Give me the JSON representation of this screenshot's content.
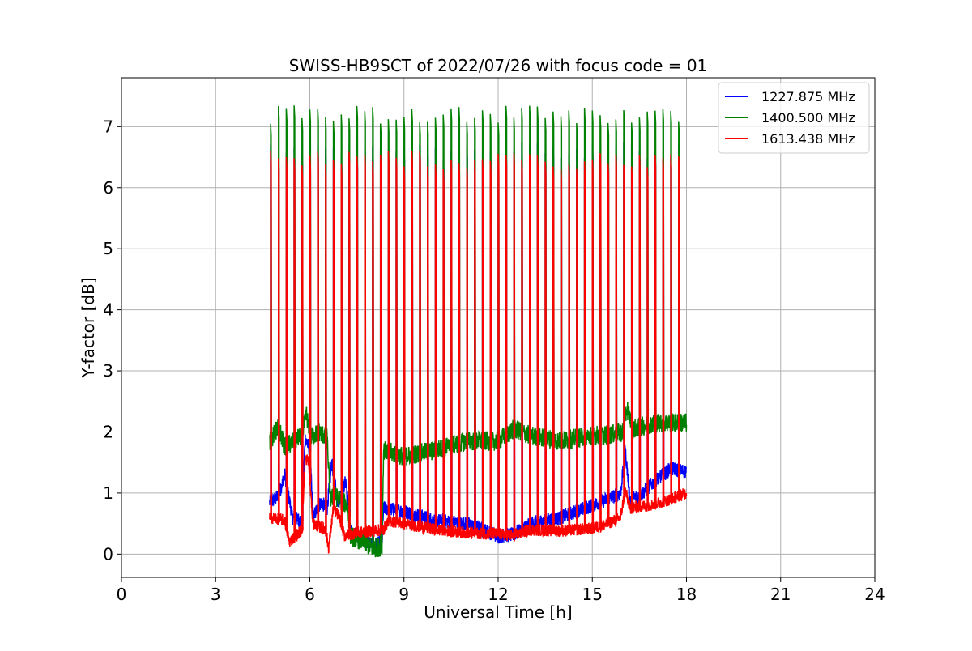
{
  "chart_data": {
    "type": "line",
    "title": "SWISS-HB9SCT of 2022/07/26 with focus code = 01",
    "xlabel": "Universal Time [h]",
    "ylabel": "Y-factor [dB]",
    "xlim": [
      0,
      24
    ],
    "ylim": [
      -0.38,
      7.8
    ],
    "xticks": [
      0,
      3,
      6,
      9,
      12,
      15,
      18,
      21,
      24
    ],
    "yticks": [
      0,
      1,
      2,
      3,
      4,
      5,
      6,
      7
    ],
    "grid": true,
    "legend_position": "top-right",
    "series": [
      {
        "name": "1227.875 MHz",
        "color": "#0000ff",
        "baseline": [
          [
            4.75,
            0.85
          ],
          [
            5.0,
            0.95
          ],
          [
            5.2,
            1.3
          ],
          [
            5.45,
            0.6
          ],
          [
            5.75,
            0.55
          ],
          [
            5.85,
            1.9
          ],
          [
            6.0,
            1.7
          ],
          [
            6.1,
            0.6
          ],
          [
            6.35,
            0.85
          ],
          [
            6.55,
            0.75
          ],
          [
            6.7,
            1.5
          ],
          [
            6.9,
            0.85
          ],
          [
            7.15,
            1.2
          ],
          [
            7.3,
            0.35
          ],
          [
            7.7,
            0.25
          ],
          [
            8.0,
            0.15
          ],
          [
            8.3,
            0.18
          ],
          [
            8.35,
            0.75
          ],
          [
            9.0,
            0.7
          ],
          [
            10.0,
            0.55
          ],
          [
            11.0,
            0.5
          ],
          [
            12.0,
            0.3
          ],
          [
            12.5,
            0.32
          ],
          [
            13.0,
            0.5
          ],
          [
            14.0,
            0.6
          ],
          [
            15.0,
            0.8
          ],
          [
            15.5,
            0.9
          ],
          [
            15.9,
            1.0
          ],
          [
            16.05,
            1.7
          ],
          [
            16.2,
            0.9
          ],
          [
            16.5,
            0.95
          ],
          [
            17.0,
            1.2
          ],
          [
            17.5,
            1.4
          ],
          [
            18.0,
            1.35
          ]
        ],
        "noise": 0.12,
        "peak_top": 6.6,
        "start_peak": 6.7
      },
      {
        "name": "1400.500 MHz",
        "color": "#008000",
        "baseline": [
          [
            4.75,
            1.85
          ],
          [
            5.0,
            2.1
          ],
          [
            5.2,
            1.75
          ],
          [
            5.5,
            1.85
          ],
          [
            5.75,
            1.95
          ],
          [
            5.9,
            2.3
          ],
          [
            6.0,
            1.9
          ],
          [
            6.3,
            2.0
          ],
          [
            6.55,
            1.9
          ],
          [
            6.65,
            0.9
          ],
          [
            6.8,
            0.95
          ],
          [
            7.2,
            0.8
          ],
          [
            7.3,
            0.3
          ],
          [
            7.7,
            0.2
          ],
          [
            8.0,
            0.1
          ],
          [
            8.3,
            0.12
          ],
          [
            8.35,
            1.7
          ],
          [
            9.0,
            1.6
          ],
          [
            10.0,
            1.7
          ],
          [
            11.0,
            1.85
          ],
          [
            12.0,
            1.85
          ],
          [
            12.5,
            2.05
          ],
          [
            13.0,
            1.95
          ],
          [
            14.0,
            1.85
          ],
          [
            15.0,
            1.95
          ],
          [
            15.5,
            1.95
          ],
          [
            16.0,
            2.0
          ],
          [
            16.1,
            2.4
          ],
          [
            16.3,
            2.05
          ],
          [
            17.0,
            2.15
          ],
          [
            18.0,
            2.15
          ]
        ],
        "noise": 0.16,
        "peak_top": 7.2,
        "start_peak": 7.05
      },
      {
        "name": "1613.438 MHz",
        "color": "#ff0000",
        "baseline": [
          [
            4.75,
            0.6
          ],
          [
            5.2,
            0.55
          ],
          [
            5.35,
            0.2
          ],
          [
            5.75,
            0.4
          ],
          [
            5.85,
            1.55
          ],
          [
            5.95,
            1.55
          ],
          [
            6.1,
            0.5
          ],
          [
            6.5,
            0.4
          ],
          [
            6.6,
            0.1
          ],
          [
            6.75,
            0.75
          ],
          [
            6.95,
            0.6
          ],
          [
            7.1,
            0.3
          ],
          [
            7.5,
            0.35
          ],
          [
            8.0,
            0.38
          ],
          [
            8.35,
            0.4
          ],
          [
            8.5,
            0.55
          ],
          [
            9.0,
            0.5
          ],
          [
            10.0,
            0.4
          ],
          [
            11.0,
            0.35
          ],
          [
            12.0,
            0.33
          ],
          [
            12.5,
            0.3
          ],
          [
            13.0,
            0.4
          ],
          [
            14.0,
            0.38
          ],
          [
            15.0,
            0.42
          ],
          [
            15.5,
            0.5
          ],
          [
            15.9,
            0.6
          ],
          [
            16.05,
            1.05
          ],
          [
            16.2,
            0.75
          ],
          [
            17.0,
            0.82
          ],
          [
            17.5,
            0.9
          ],
          [
            18.0,
            1.0
          ]
        ],
        "noise": 0.1,
        "peak_top": 6.45,
        "start_peak": 6.6
      }
    ],
    "calibration_peak_hours": [
      4.75,
      5.0,
      5.25,
      5.5,
      5.75,
      6.0,
      6.25,
      6.5,
      6.75,
      7.0,
      7.25,
      7.5,
      7.75,
      8.0,
      8.25,
      8.5,
      8.75,
      9.0,
      9.25,
      9.5,
      9.75,
      10.0,
      10.25,
      10.5,
      10.75,
      11.0,
      11.25,
      11.5,
      11.75,
      12.0,
      12.25,
      12.5,
      12.75,
      13.0,
      13.25,
      13.5,
      13.75,
      14.0,
      14.25,
      14.5,
      14.75,
      15.0,
      15.25,
      15.5,
      15.75,
      16.0,
      16.25,
      16.5,
      16.75,
      17.0,
      17.25,
      17.5,
      17.75
    ],
    "data_range_hours": [
      4.72,
      18.0
    ]
  }
}
